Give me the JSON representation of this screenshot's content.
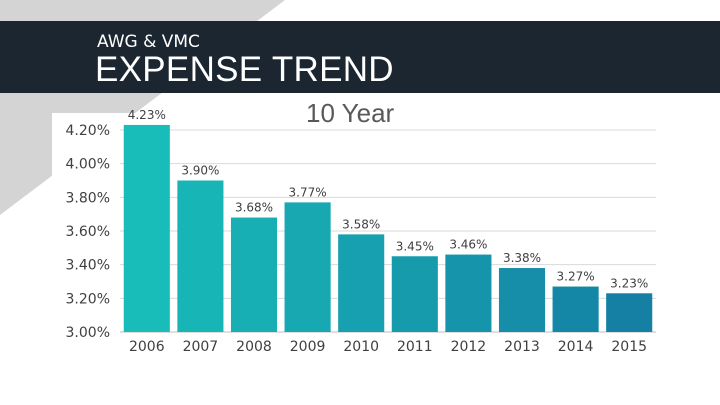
{
  "header": {
    "subtitle": "AWG & VMC",
    "title": "EXPENSE TREND"
  },
  "colors": {
    "header_bg": "#1b2631",
    "bar_start": "#18bcb9",
    "bar_end": "#1580a4",
    "grid": "#d9d9d9"
  },
  "chart_data": {
    "type": "bar",
    "title": "10 Year",
    "xlabel": "",
    "ylabel": "",
    "categories": [
      "2006",
      "2007",
      "2008",
      "2009",
      "2010",
      "2011",
      "2012",
      "2013",
      "2014",
      "2015"
    ],
    "values": [
      4.23,
      3.9,
      3.68,
      3.77,
      3.58,
      3.45,
      3.46,
      3.38,
      3.27,
      3.23
    ],
    "value_labels": [
      "4.23%",
      "3.90%",
      "3.68%",
      "3.77%",
      "3.58%",
      "3.45%",
      "3.46%",
      "3.38%",
      "3.27%",
      "3.23%"
    ],
    "ylim": [
      3.0,
      4.2
    ],
    "yticks": [
      3.0,
      3.2,
      3.4,
      3.6,
      3.8,
      4.0,
      4.2
    ],
    "ytick_labels": [
      "3.00%",
      "3.20%",
      "3.40%",
      "3.60%",
      "3.80%",
      "4.00%",
      "4.20%"
    ],
    "grid": true,
    "legend": "none"
  }
}
